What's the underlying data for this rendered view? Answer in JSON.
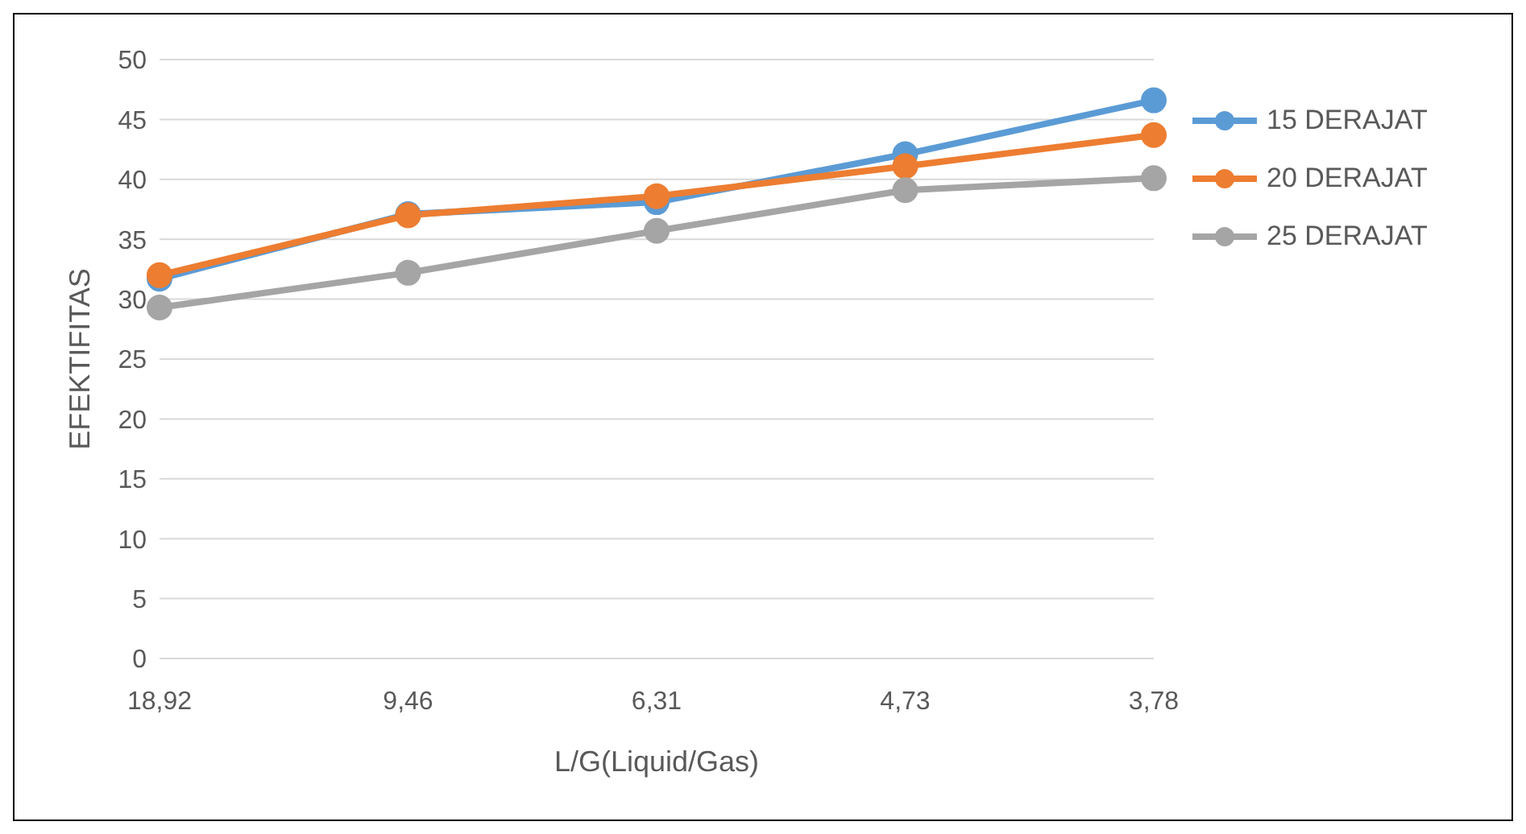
{
  "chart_data": {
    "type": "line",
    "xlabel": "L/G(Liquid/Gas)",
    "ylabel": "EFEKTIFITAS",
    "categories": [
      "18,92",
      "9,46",
      "6,31",
      "4,73",
      "3,78"
    ],
    "series": [
      {
        "name": "15 DERAJAT",
        "color": "#5b9bd5",
        "values": [
          31.7,
          37.1,
          38.1,
          42.1,
          46.6
        ]
      },
      {
        "name": "20 DERAJAT",
        "color": "#ed7d31",
        "values": [
          32.0,
          37.0,
          38.6,
          41.1,
          43.7
        ]
      },
      {
        "name": "25 DERAJAT",
        "color": "#a5a5a5",
        "values": [
          29.3,
          32.2,
          35.7,
          39.1,
          40.1
        ]
      }
    ],
    "ylim": [
      0,
      50
    ],
    "yticks": [
      0,
      5,
      10,
      15,
      20,
      25,
      30,
      35,
      40,
      45,
      50
    ],
    "grid": "y",
    "legend": "right",
    "marker": "circle",
    "line_style": "solid"
  }
}
